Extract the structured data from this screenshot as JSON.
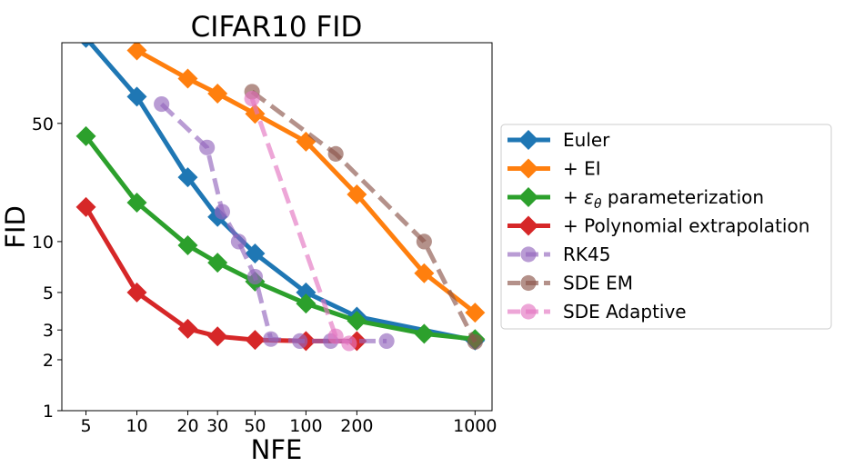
{
  "chart_data": {
    "type": "line",
    "title": "CIFAR10 FID",
    "xlabel": "NFE",
    "ylabel": "FID",
    "xscale": "log",
    "yscale": "log",
    "xlim": [
      3.6,
      1260
    ],
    "ylim": [
      1,
      150
    ],
    "xticks": [
      5,
      10,
      20,
      30,
      50,
      100,
      200,
      1000
    ],
    "xtick_labels": [
      "5",
      "10",
      "20",
      "30",
      "50",
      "100",
      "200",
      "1000"
    ],
    "yticks": [
      1,
      2,
      3,
      5,
      10,
      50
    ],
    "ytick_labels": [
      "1",
      "2",
      "3",
      "5",
      "10",
      "50"
    ],
    "grid": false,
    "legend_position": "right, outside plot",
    "series": [
      {
        "name": "Euler",
        "color": "#1f77b4",
        "marker": "diamond",
        "linestyle": "solid",
        "x": [
          5,
          10,
          20,
          30,
          50,
          100,
          200,
          1000
        ],
        "y": [
          160,
          72,
          24,
          14,
          8.5,
          5,
          3.6,
          2.6
        ]
      },
      {
        "name": "+ EI",
        "color": "#ff7f0e",
        "marker": "diamond",
        "linestyle": "solid",
        "x": [
          10,
          20,
          30,
          50,
          100,
          200,
          500,
          1000
        ],
        "y": [
          135,
          92,
          75,
          57,
          39,
          19,
          6.5,
          3.8
        ]
      },
      {
        "name": "+ εθ parameterization",
        "name_base": "+ ",
        "name_symbol": "ε",
        "name_subscript": "θ",
        "name_rest": " parameterization",
        "color": "#2ca02c",
        "marker": "diamond",
        "linestyle": "solid",
        "x": [
          5,
          10,
          20,
          30,
          50,
          100,
          200,
          500,
          1000
        ],
        "y": [
          42,
          17,
          9.5,
          7.5,
          5.8,
          4.3,
          3.4,
          2.85,
          2.65
        ]
      },
      {
        "name": "+ Polynomial extrapolation",
        "color": "#d62728",
        "marker": "diamond",
        "linestyle": "solid",
        "x": [
          5,
          10,
          20,
          30,
          50,
          100,
          200
        ],
        "y": [
          16,
          5,
          3.05,
          2.75,
          2.62,
          2.58,
          2.58
        ]
      },
      {
        "name": "RK45",
        "color": "#9467bd",
        "marker": "circle",
        "linestyle": "dashed",
        "alpha": 0.65,
        "x": [
          14,
          26,
          32,
          40,
          50,
          62,
          92,
          140,
          300
        ],
        "y": [
          65,
          36,
          15,
          10,
          6.2,
          2.65,
          2.58,
          2.58,
          2.58
        ]
      },
      {
        "name": "SDE EM",
        "color": "#8c564b",
        "marker": "circle",
        "linestyle": "dashed",
        "alpha": 0.65,
        "x": [
          48,
          150,
          500,
          1000
        ],
        "y": [
          77,
          33,
          10,
          2.55
        ]
      },
      {
        "name": "SDE Adaptive",
        "color": "#e377c2",
        "marker": "circle",
        "linestyle": "dashed",
        "alpha": 0.65,
        "x": [
          48,
          150,
          180
        ],
        "y": [
          70,
          2.75,
          2.5
        ]
      }
    ]
  }
}
